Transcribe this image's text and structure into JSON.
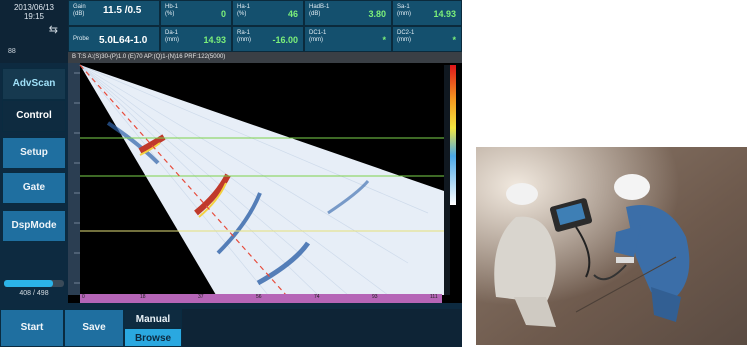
{
  "header": {
    "date": "2013/06/13",
    "time": "19:15",
    "icon": "network-icon",
    "small_counter": "88",
    "cells_row1": [
      {
        "label": "Gain\n(dB)",
        "value": "11.5 /0.5",
        "style": "big"
      },
      {
        "label": "Hb-1\n(%)",
        "value": "0"
      },
      {
        "label": "Ha-1\n(%)",
        "value": "46"
      },
      {
        "label": "HadB-1\n(dB)",
        "value": "3.80"
      },
      {
        "label": "Sa-1\n(mm)",
        "value": "14.93"
      }
    ],
    "cells_row2": [
      {
        "label": "Probe",
        "value": "5.0L64-1.0",
        "style": "big"
      },
      {
        "label": "Da-1\n(mm)",
        "value": "14.93"
      },
      {
        "label": "Ra-1\n(mm)",
        "value": "-16.00"
      },
      {
        "label": "DC1-1\n(mm)",
        "value": "*"
      },
      {
        "label": "DC2-1\n(mm)",
        "value": "*"
      }
    ],
    "infobar": "B   T:S A:(S)30-(P)1.0 (E)70 AP:(Q)1-(N)16 PRF:122(5000)"
  },
  "left_menu": [
    "AdvScan",
    "Control",
    "Setup",
    "Gate",
    "DspMode"
  ],
  "progress": {
    "value": 408,
    "max": 498,
    "text": "408 / 498"
  },
  "ruler_ticks": [
    "0",
    "18",
    "37",
    "56",
    "74",
    "93",
    "111"
  ],
  "bottom": {
    "start": "Start",
    "save": "Save",
    "toggle": [
      "Manual",
      "Browse"
    ]
  },
  "colors": {
    "accent": "#2aa8e0",
    "value_green": "#7cf07a",
    "panel": "#14506e"
  }
}
